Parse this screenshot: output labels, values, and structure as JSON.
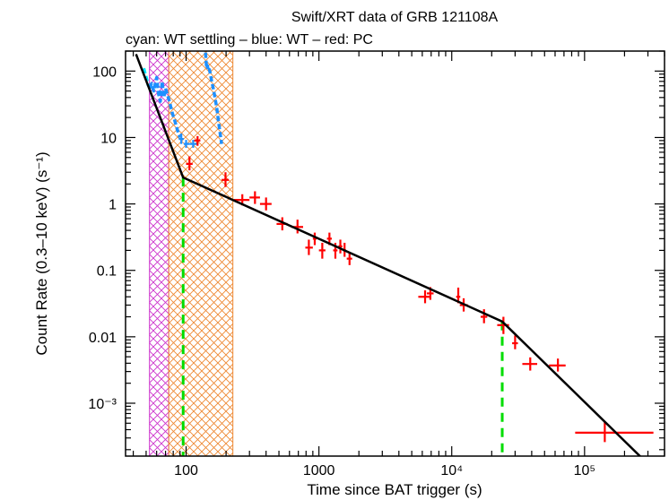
{
  "chart_data": {
    "type": "scatter",
    "title": "Swift/XRT data of GRB 121108A",
    "subtitle": "cyan: WT settling – blue: WT – red: PC",
    "xlabel": "Time since BAT trigger (s)",
    "ylabel": "Count Rate (0.3–10 keV) (s⁻¹)",
    "x_scale": "log",
    "y_scale": "log",
    "xlim": [
      35,
      400000
    ],
    "ylim": [
      0.00016,
      200
    ],
    "x_ticks": [
      {
        "value": 100,
        "label": "100"
      },
      {
        "value": 1000,
        "label": "1000"
      },
      {
        "value": 10000,
        "label": "10⁴"
      },
      {
        "value": 100000,
        "label": "10⁵"
      }
    ],
    "y_ticks": [
      {
        "value": 100,
        "label": "100"
      },
      {
        "value": 10,
        "label": "10"
      },
      {
        "value": 1,
        "label": "1"
      },
      {
        "value": 0.1,
        "label": "0.1"
      },
      {
        "value": 0.01,
        "label": "0.01"
      },
      {
        "value": 0.001,
        "label": "10⁻³"
      }
    ],
    "colors": {
      "wt_settling": "#00e5ff",
      "wt": "#1e90ff",
      "pc": "#ff0000",
      "model": "#000000",
      "breaks": "#00dd00",
      "band1": "#cc33cc",
      "band2": "#ee8833"
    },
    "shaded_intervals": [
      {
        "x": [
          53,
          74
        ],
        "color": "#cc33cc"
      },
      {
        "x": [
          74,
          225
        ],
        "color": "#ee8833"
      }
    ],
    "break_times": [
      95,
      24000
    ],
    "series": [
      {
        "name": "cyan: WT settling",
        "style": "line",
        "color": "#00e5ff",
        "points": [
          [
            48,
            110
          ],
          [
            49,
            95
          ],
          [
            50,
            82
          ],
          [
            51,
            70
          ],
          [
            52,
            60
          ]
        ]
      },
      {
        "name": "blue: WT",
        "style": "line",
        "color": "#1e90ff",
        "points": [
          [
            53,
            55
          ],
          [
            55,
            65
          ],
          [
            57,
            50
          ],
          [
            60,
            80
          ],
          [
            62,
            45
          ],
          [
            64,
            35
          ],
          [
            66,
            70
          ],
          [
            68,
            40
          ],
          [
            70,
            55
          ],
          [
            72,
            45
          ],
          [
            75,
            35
          ],
          [
            78,
            25
          ],
          [
            82,
            18
          ],
          [
            86,
            13
          ],
          [
            90,
            10
          ]
        ]
      },
      {
        "name": "blue: WT",
        "style": "errorbar",
        "color": "#1e90ff",
        "points": [
          {
            "x": 92,
            "y": 9.5,
            "xerr": [
              88,
              96
            ],
            "yerr": [
              8,
              11.5
            ]
          },
          {
            "x": 100,
            "y": 8.0,
            "xerr": [
              96,
              106
            ],
            "yerr": [
              7,
              9.2
            ]
          },
          {
            "x": 113,
            "y": 8.0,
            "xerr": [
              106,
              122
            ],
            "yerr": [
              7,
              9.2
            ]
          }
        ]
      },
      {
        "name": "blue: WT",
        "style": "line",
        "color": "#1e90ff",
        "points": [
          [
            140,
            190
          ],
          [
            141,
            150
          ],
          [
            142,
            125
          ],
          [
            143,
            110
          ],
          [
            145,
            120
          ],
          [
            147,
            100
          ],
          [
            150,
            105
          ],
          [
            153,
            85
          ],
          [
            156,
            70
          ],
          [
            160,
            55
          ],
          [
            165,
            40
          ],
          [
            170,
            28
          ],
          [
            175,
            18
          ],
          [
            180,
            12
          ],
          [
            185,
            8
          ]
        ]
      },
      {
        "name": "red: PC",
        "style": "errorbar",
        "color": "#ff0000",
        "points": [
          {
            "x": 122,
            "y": 9.0,
            "xerr": [
              115,
              128
            ],
            "yerr": [
              7.5,
              10.5
            ]
          },
          {
            "x": 106,
            "y": 4.0,
            "xerr": [
              100,
              112
            ],
            "yerr": [
              3.2,
              5.2
            ]
          },
          {
            "x": 198,
            "y": 2.3,
            "xerr": [
              185,
              210
            ],
            "yerr": [
              1.8,
              3.0
            ]
          },
          {
            "x": 265,
            "y": 1.15,
            "xerr": [
              230,
              300
            ],
            "yerr": [
              0.95,
              1.4
            ]
          },
          {
            "x": 330,
            "y": 1.25,
            "xerr": [
              300,
              360
            ],
            "yerr": [
              1.0,
              1.55
            ]
          },
          {
            "x": 400,
            "y": 1.0,
            "xerr": [
              360,
              440
            ],
            "yerr": [
              0.8,
              1.25
            ]
          },
          {
            "x": 530,
            "y": 0.5,
            "xerr": [
              480,
              580
            ],
            "yerr": [
              0.4,
              0.63
            ]
          },
          {
            "x": 690,
            "y": 0.45,
            "xerr": [
              620,
              760
            ],
            "yerr": [
              0.36,
              0.58
            ]
          },
          {
            "x": 840,
            "y": 0.22,
            "xerr": [
              790,
              900
            ],
            "yerr": [
              0.17,
              0.29
            ]
          },
          {
            "x": 930,
            "y": 0.3,
            "xerr": [
              900,
              960
            ],
            "yerr": [
              0.24,
              0.37
            ]
          },
          {
            "x": 1060,
            "y": 0.2,
            "xerr": [
              1000,
              1120
            ],
            "yerr": [
              0.15,
              0.26
            ]
          },
          {
            "x": 1200,
            "y": 0.3,
            "xerr": [
              1150,
              1250
            ],
            "yerr": [
              0.24,
              0.37
            ]
          },
          {
            "x": 1330,
            "y": 0.2,
            "xerr": [
              1280,
              1380
            ],
            "yerr": [
              0.15,
              0.26
            ]
          },
          {
            "x": 1450,
            "y": 0.23,
            "xerr": [
              1400,
              1500
            ],
            "yerr": [
              0.18,
              0.29
            ]
          },
          {
            "x": 1560,
            "y": 0.2,
            "xerr": [
              1520,
              1600
            ],
            "yerr": [
              0.16,
              0.26
            ]
          },
          {
            "x": 1700,
            "y": 0.15,
            "xerr": [
              1620,
              1780
            ],
            "yerr": [
              0.12,
              0.19
            ]
          },
          {
            "x": 6300,
            "y": 0.04,
            "xerr": [
              5600,
              7000
            ],
            "yerr": [
              0.032,
              0.05
            ]
          },
          {
            "x": 6900,
            "y": 0.045,
            "xerr": [
              6500,
              7300
            ],
            "yerr": [
              0.036,
              0.056
            ]
          },
          {
            "x": 11200,
            "y": 0.04,
            "xerr": [
              10800,
              11600
            ],
            "yerr": [
              0.032,
              0.055
            ]
          },
          {
            "x": 12300,
            "y": 0.03,
            "xerr": [
              11500,
              13200
            ],
            "yerr": [
              0.024,
              0.038
            ]
          },
          {
            "x": 17500,
            "y": 0.02,
            "xerr": [
              16500,
              18500
            ],
            "yerr": [
              0.016,
              0.026
            ]
          },
          {
            "x": 24500,
            "y": 0.015,
            "xerr": [
              22000,
              27000
            ],
            "yerr": [
              0.011,
              0.02
            ]
          },
          {
            "x": 30000,
            "y": 0.008,
            "xerr": [
              28500,
              31500
            ],
            "yerr": [
              0.0065,
              0.0105
            ]
          },
          {
            "x": 39000,
            "y": 0.0039,
            "xerr": [
              34000,
              44000
            ],
            "yerr": [
              0.0031,
              0.0049
            ]
          },
          {
            "x": 63000,
            "y": 0.0037,
            "xerr": [
              54000,
              72000
            ],
            "yerr": [
              0.003,
              0.0047
            ]
          },
          {
            "x": 142000,
            "y": 0.00036,
            "xerr": [
              85000,
              330000
            ],
            "yerr": [
              0.00026,
              0.00052
            ]
          }
        ]
      },
      {
        "name": "model",
        "style": "model",
        "color": "#000000",
        "points": [
          [
            42,
            180
          ],
          [
            95,
            2.5
          ],
          [
            24000,
            0.017
          ],
          [
            270000,
            0.00015
          ]
        ]
      }
    ]
  }
}
